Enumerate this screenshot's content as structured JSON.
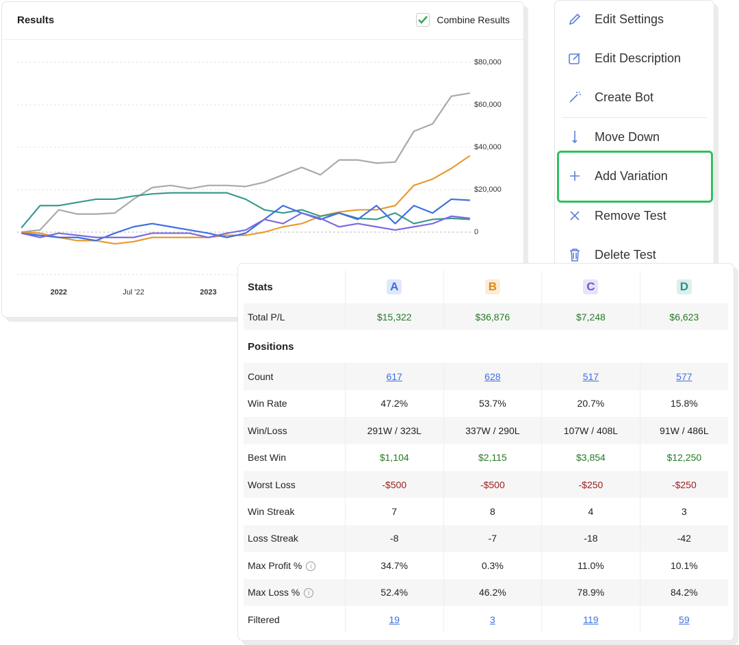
{
  "panel": {
    "title": "Results",
    "toggle": "Combine Results"
  },
  "chart_data": {
    "type": "line",
    "x": [
      2021.75,
      2021.875,
      2022,
      2022.125,
      2022.25,
      2022.375,
      2022.5,
      2022.625,
      2022.75,
      2022.875,
      2023,
      2023.125,
      2023.25,
      2023.375,
      2023.5,
      2023.625,
      2023.75,
      2023.875,
      2024,
      2024.125,
      2024.25,
      2024.375,
      2024.5,
      2024.625,
      2024.75
    ],
    "series": [
      {
        "color": "#a9a9a9",
        "values": [
          0,
          1000,
          10500,
          8500,
          8500,
          9000,
          15500,
          21000,
          22000,
          20500,
          22000,
          22000,
          21500,
          23500,
          27000,
          30500,
          27000,
          34000,
          34000,
          32500,
          33000,
          47500,
          51000,
          64000,
          65500
        ]
      },
      {
        "color": "#e89a2c",
        "values": [
          0,
          -500,
          -2500,
          -4000,
          -4000,
          -5500,
          -4500,
          -2500,
          -2500,
          -2500,
          -2500,
          -1500,
          -1500,
          0,
          2500,
          4000,
          7500,
          9500,
          10500,
          10500,
          12500,
          22000,
          25000,
          30000,
          36000
        ]
      },
      {
        "color": "#3a9a8f",
        "values": [
          2000,
          12500,
          12500,
          14000,
          15500,
          15500,
          17000,
          18000,
          18500,
          18500,
          18500,
          18500,
          15500,
          10500,
          9000,
          10500,
          7500,
          9000,
          6500,
          6000,
          9000,
          4000,
          6000,
          6500,
          6000
        ]
      },
      {
        "color": "#3d6fe0",
        "values": [
          -500,
          -1500,
          -2500,
          -2500,
          -4000,
          -500,
          2500,
          4000,
          2500,
          1000,
          -500,
          -2500,
          -500,
          6000,
          12500,
          9000,
          6000,
          9000,
          6000,
          12500,
          4000,
          12500,
          9000,
          15500,
          15000
        ]
      },
      {
        "color": "#7b6be0",
        "values": [
          -500,
          -2500,
          -500,
          -1500,
          -2500,
          -2500,
          -2500,
          -500,
          -500,
          -500,
          -2500,
          -500,
          1000,
          6000,
          4000,
          9000,
          6500,
          2500,
          4000,
          2500,
          1000,
          2500,
          4000,
          7500,
          6500
        ]
      }
    ],
    "xlim": [
      2021.74,
      2024.76
    ],
    "xticks": [
      {
        "value": 2022,
        "label": "2022"
      },
      {
        "value": 2022.5,
        "label": "Jul '22"
      },
      {
        "value": 2023,
        "label": "2023"
      }
    ],
    "ylim": [
      -20000,
      80000
    ],
    "yticks": [
      0,
      {
        "value": 20000,
        "label": "$20,000"
      },
      {
        "value": 40000,
        "label": "$40,000"
      },
      {
        "value": 60000,
        "label": "$60,000"
      },
      {
        "value": 80000,
        "label": "$80,000"
      }
    ],
    "grid": true
  },
  "menu": {
    "items": [
      "Edit Settings",
      "Edit Description",
      "Create Bot",
      "Move Down",
      "Add Variation",
      "Remove Test",
      "Delete Test"
    ]
  },
  "stats": {
    "title": "Stats",
    "columns": [
      {
        "label": "A",
        "color": "#3d6fe0",
        "bg": "#dfe8fb"
      },
      {
        "label": "B",
        "color": "#d98a1a",
        "bg": "#fbecd6"
      },
      {
        "label": "C",
        "color": "#6a5ad6",
        "bg": "#e6e3fa"
      },
      {
        "label": "D",
        "color": "#2e8f84",
        "bg": "#dcefed"
      }
    ],
    "total": {
      "label": "Total P/L",
      "color": "#237a23",
      "cells": [
        "$15,322",
        "$36,876",
        "$7,248",
        "$6,623"
      ]
    },
    "section": "Positions",
    "rows": [
      {
        "label": "Count",
        "color": "#3d6fe0",
        "underline": true,
        "cells": [
          "617",
          "628",
          "517",
          "577"
        ]
      },
      {
        "label": "Win Rate",
        "cells": [
          "47.2%",
          "53.7%",
          "20.7%",
          "15.8%"
        ]
      },
      {
        "label": "Win/Loss",
        "cells": [
          "291W / 323L",
          "337W / 290L",
          "107W / 408L",
          "91W / 486L"
        ]
      },
      {
        "label": "Best Win",
        "color": "#237a23",
        "cells": [
          "$1,104",
          "$2,115",
          "$3,854",
          "$12,250"
        ]
      },
      {
        "label": "Worst Loss",
        "color": "#9b1c1c",
        "cells": [
          "-$500",
          "-$500",
          "-$250",
          "-$250"
        ]
      },
      {
        "label": "Win Streak",
        "cells": [
          "7",
          "8",
          "4",
          "3"
        ]
      },
      {
        "label": "Loss Streak",
        "cells": [
          "-8",
          "-7",
          "-18",
          "-42"
        ]
      },
      {
        "label": "Max Profit %",
        "info": true,
        "cells": [
          "34.7%",
          "0.3%",
          "11.0%",
          "10.1%"
        ]
      },
      {
        "label": "Max Loss %",
        "info": true,
        "cells": [
          "52.4%",
          "46.2%",
          "78.9%",
          "84.2%"
        ]
      },
      {
        "label": "Filtered",
        "color": "#3d6fe0",
        "underline": true,
        "cells": [
          "19",
          "3",
          "119",
          "59"
        ]
      }
    ]
  }
}
